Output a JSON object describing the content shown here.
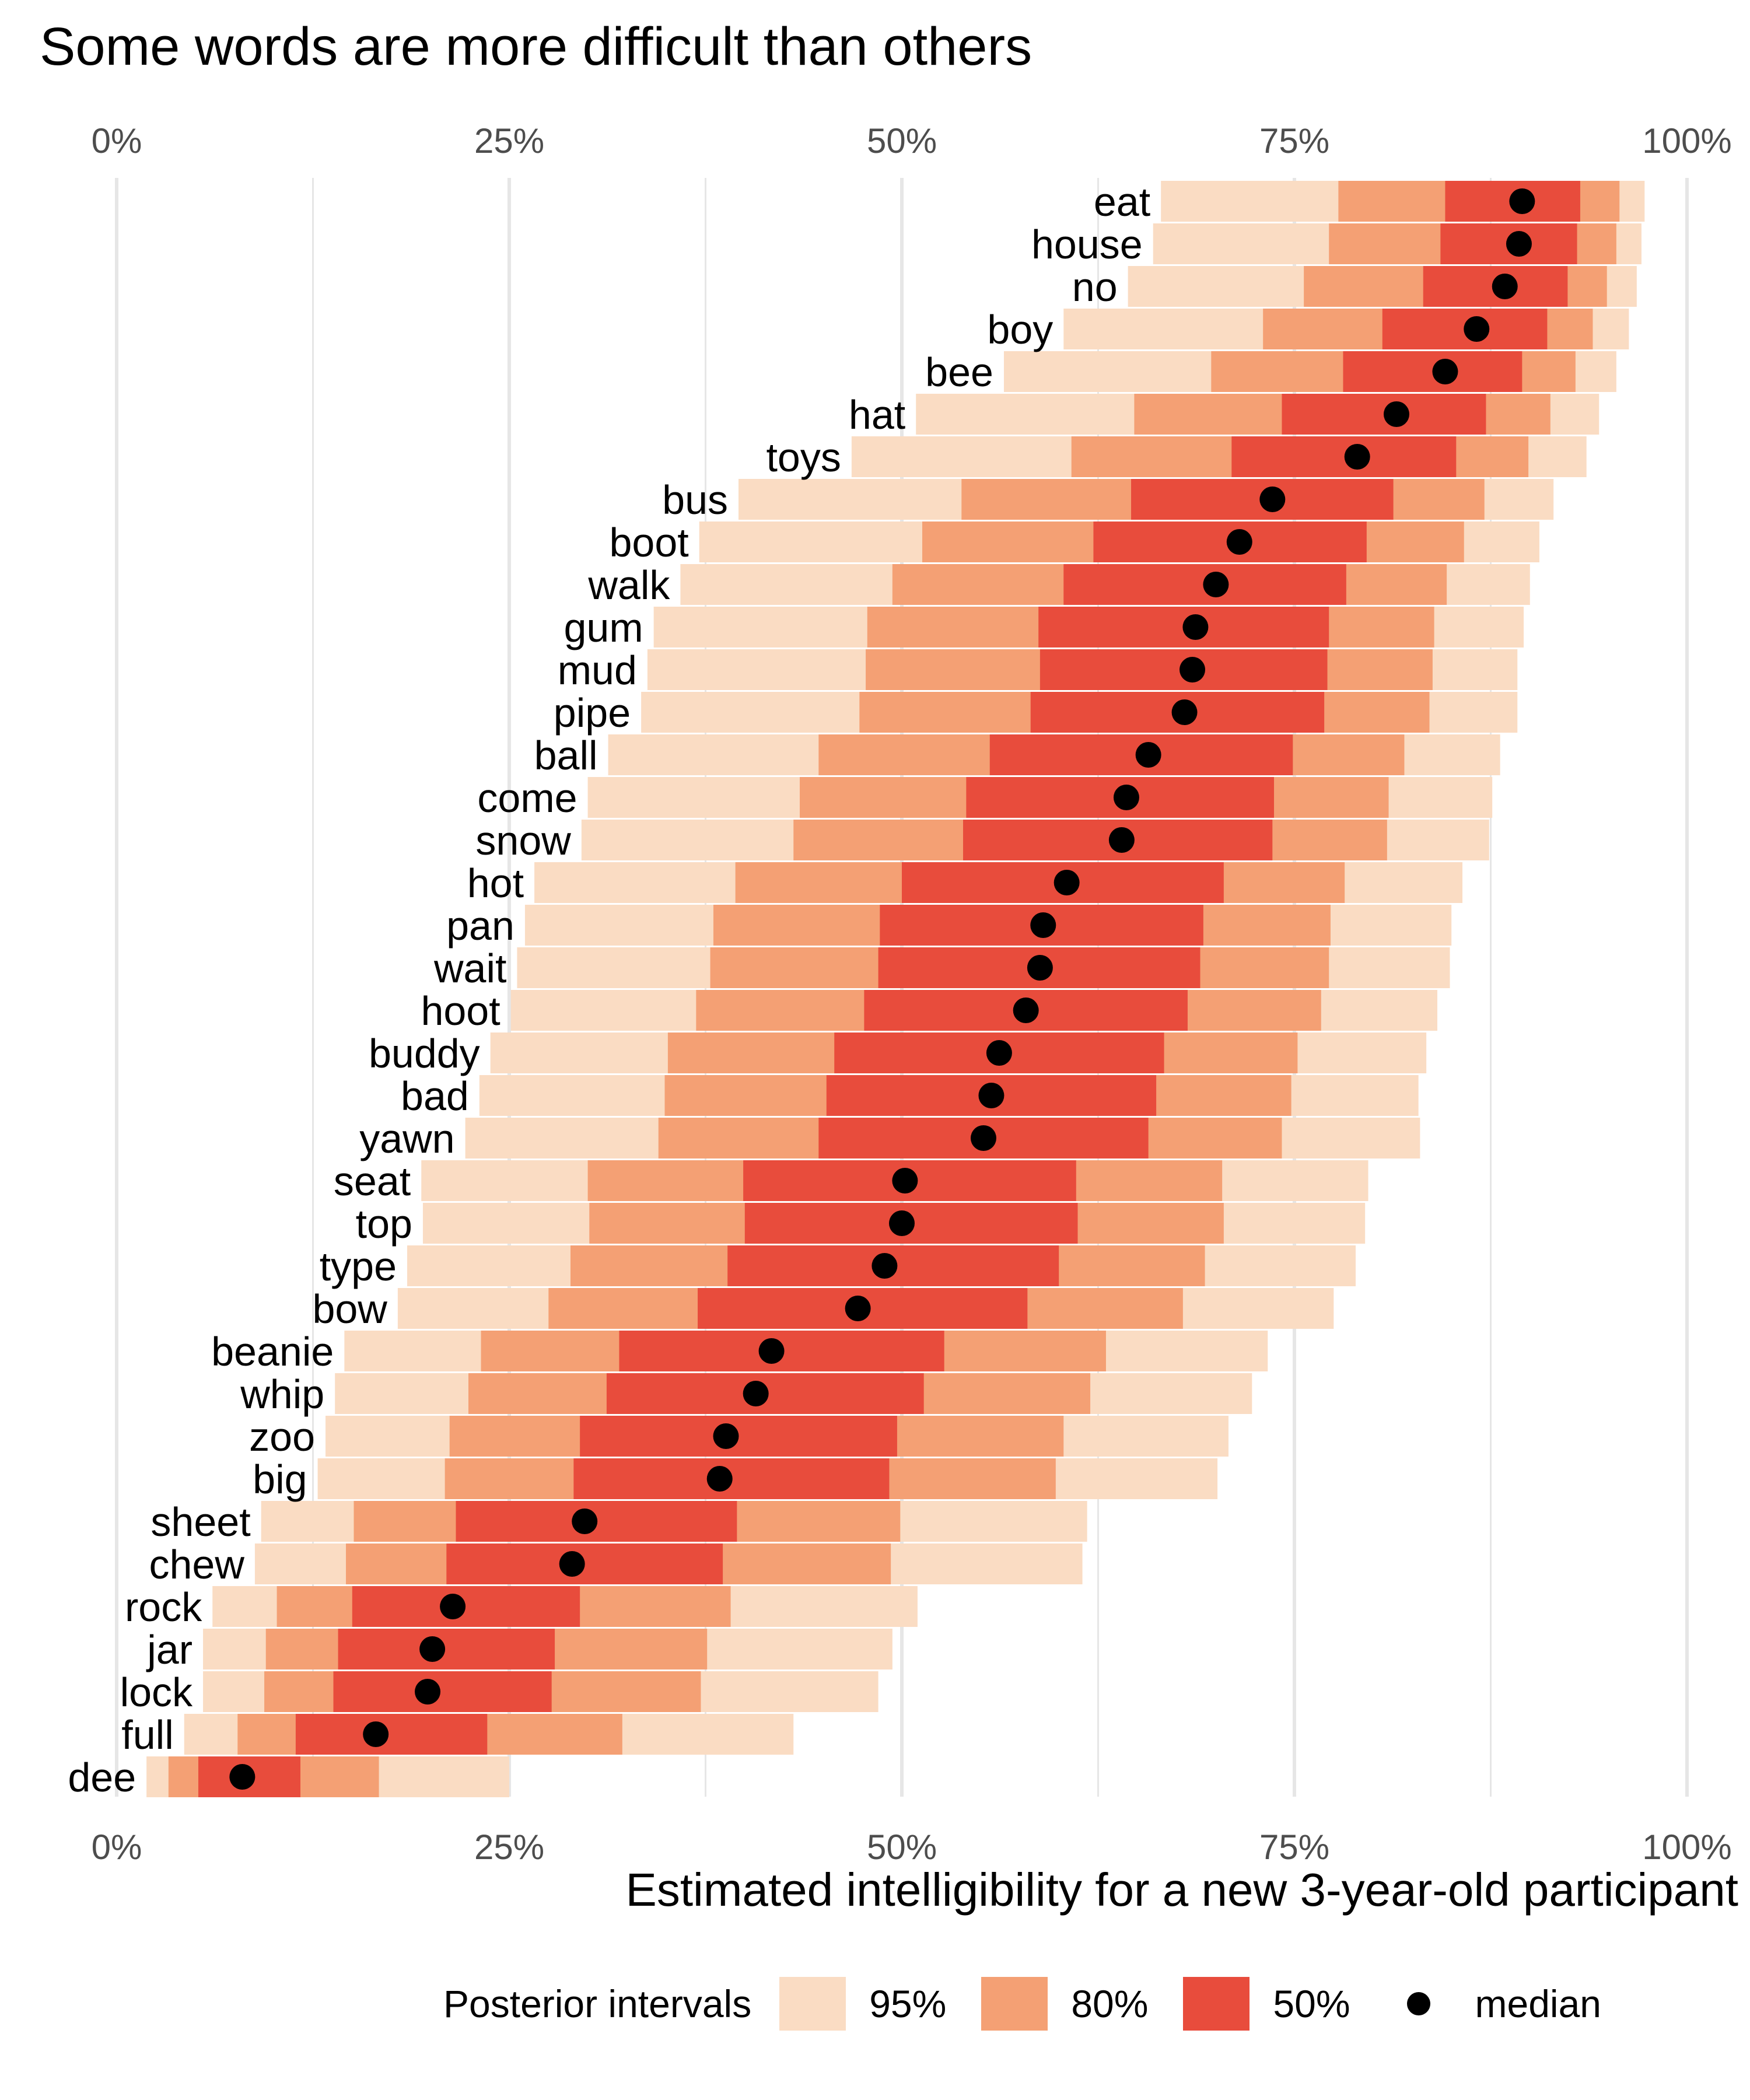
{
  "colors": {
    "ci95": "#fadcc3",
    "ci80": "#f4a074",
    "ci50": "#e84c3c",
    "median": "#000000",
    "grid": "#e6e6e6"
  },
  "chart_data": {
    "type": "interval",
    "title": "Some words are more difficult than others",
    "xlabel": "Estimated intelligibility for a new 3-year-old participant",
    "ylabel": "",
    "xlim": [
      0,
      1
    ],
    "x_ticks": [
      0,
      0.25,
      0.5,
      0.75,
      1
    ],
    "x_tick_labels": [
      "0%",
      "25%",
      "50%",
      "75%",
      "100%"
    ],
    "x_axis_position": "top and bottom",
    "grid": true,
    "legend": {
      "title": "Posterior intervals",
      "placement": "bottom",
      "items": [
        {
          "key": "ci95",
          "label": "95%"
        },
        {
          "key": "ci80",
          "label": "80%"
        },
        {
          "key": "ci50",
          "label": "50%"
        },
        {
          "key": "median",
          "label": "median"
        }
      ]
    },
    "words": [
      {
        "word": "eat",
        "l95": 0.665,
        "l80": 0.778,
        "l50": 0.846,
        "median": 0.895,
        "u50": 0.932,
        "u80": 0.957,
        "u95": 0.973
      },
      {
        "word": "house",
        "l95": 0.66,
        "l80": 0.772,
        "l50": 0.843,
        "median": 0.893,
        "u50": 0.93,
        "u80": 0.955,
        "u95": 0.971
      },
      {
        "word": "no",
        "l95": 0.644,
        "l80": 0.756,
        "l50": 0.832,
        "median": 0.884,
        "u50": 0.924,
        "u80": 0.949,
        "u95": 0.968
      },
      {
        "word": "boy",
        "l95": 0.603,
        "l80": 0.73,
        "l50": 0.806,
        "median": 0.866,
        "u50": 0.911,
        "u80": 0.94,
        "u95": 0.963
      },
      {
        "word": "bee",
        "l95": 0.565,
        "l80": 0.697,
        "l50": 0.781,
        "median": 0.846,
        "u50": 0.895,
        "u80": 0.929,
        "u95": 0.955
      },
      {
        "word": "hat",
        "l95": 0.509,
        "l80": 0.648,
        "l50": 0.742,
        "median": 0.815,
        "u50": 0.872,
        "u80": 0.913,
        "u95": 0.944
      },
      {
        "word": "toys",
        "l95": 0.468,
        "l80": 0.608,
        "l50": 0.71,
        "median": 0.79,
        "u50": 0.853,
        "u80": 0.899,
        "u95": 0.936
      },
      {
        "word": "bus",
        "l95": 0.396,
        "l80": 0.538,
        "l50": 0.646,
        "median": 0.736,
        "u50": 0.813,
        "u80": 0.871,
        "u95": 0.915
      },
      {
        "word": "boot",
        "l95": 0.371,
        "l80": 0.513,
        "l50": 0.622,
        "median": 0.715,
        "u50": 0.796,
        "u80": 0.858,
        "u95": 0.906
      },
      {
        "word": "walk",
        "l95": 0.359,
        "l80": 0.494,
        "l50": 0.603,
        "median": 0.7,
        "u50": 0.783,
        "u80": 0.847,
        "u95": 0.9
      },
      {
        "word": "gum",
        "l95": 0.342,
        "l80": 0.478,
        "l50": 0.587,
        "median": 0.687,
        "u50": 0.772,
        "u80": 0.839,
        "u95": 0.896
      },
      {
        "word": "mud",
        "l95": 0.338,
        "l80": 0.477,
        "l50": 0.588,
        "median": 0.685,
        "u50": 0.771,
        "u80": 0.838,
        "u95": 0.892
      },
      {
        "word": "pipe",
        "l95": 0.334,
        "l80": 0.473,
        "l50": 0.582,
        "median": 0.68,
        "u50": 0.769,
        "u80": 0.836,
        "u95": 0.892
      },
      {
        "word": "ball",
        "l95": 0.313,
        "l80": 0.447,
        "l50": 0.556,
        "median": 0.657,
        "u50": 0.749,
        "u80": 0.82,
        "u95": 0.881
      },
      {
        "word": "come",
        "l95": 0.3,
        "l80": 0.435,
        "l50": 0.541,
        "median": 0.643,
        "u50": 0.737,
        "u80": 0.81,
        "u95": 0.876
      },
      {
        "word": "snow",
        "l95": 0.296,
        "l80": 0.431,
        "l50": 0.539,
        "median": 0.64,
        "u50": 0.736,
        "u80": 0.809,
        "u95": 0.874
      },
      {
        "word": "hot",
        "l95": 0.266,
        "l80": 0.394,
        "l50": 0.5,
        "median": 0.605,
        "u50": 0.705,
        "u80": 0.782,
        "u95": 0.857
      },
      {
        "word": "pan",
        "l95": 0.26,
        "l80": 0.38,
        "l50": 0.486,
        "median": 0.59,
        "u50": 0.692,
        "u80": 0.773,
        "u95": 0.85
      },
      {
        "word": "wait",
        "l95": 0.255,
        "l80": 0.378,
        "l50": 0.485,
        "median": 0.588,
        "u50": 0.69,
        "u80": 0.772,
        "u95": 0.849
      },
      {
        "word": "hoot",
        "l95": 0.251,
        "l80": 0.369,
        "l50": 0.476,
        "median": 0.579,
        "u50": 0.682,
        "u80": 0.767,
        "u95": 0.841
      },
      {
        "word": "buddy",
        "l95": 0.238,
        "l80": 0.351,
        "l50": 0.457,
        "median": 0.562,
        "u50": 0.667,
        "u80": 0.752,
        "u95": 0.834
      },
      {
        "word": "bad",
        "l95": 0.231,
        "l80": 0.349,
        "l50": 0.452,
        "median": 0.557,
        "u50": 0.662,
        "u80": 0.748,
        "u95": 0.829
      },
      {
        "word": "yawn",
        "l95": 0.222,
        "l80": 0.345,
        "l50": 0.447,
        "median": 0.552,
        "u50": 0.657,
        "u80": 0.742,
        "u95": 0.83
      },
      {
        "word": "seat",
        "l95": 0.194,
        "l80": 0.3,
        "l50": 0.399,
        "median": 0.502,
        "u50": 0.611,
        "u80": 0.704,
        "u95": 0.797
      },
      {
        "word": "top",
        "l95": 0.195,
        "l80": 0.301,
        "l50": 0.4,
        "median": 0.5,
        "u50": 0.612,
        "u80": 0.705,
        "u95": 0.795
      },
      {
        "word": "type",
        "l95": 0.185,
        "l80": 0.289,
        "l50": 0.389,
        "median": 0.489,
        "u50": 0.6,
        "u80": 0.693,
        "u95": 0.789
      },
      {
        "word": "bow",
        "l95": 0.179,
        "l80": 0.275,
        "l50": 0.37,
        "median": 0.472,
        "u50": 0.58,
        "u80": 0.679,
        "u95": 0.775
      },
      {
        "word": "beanie",
        "l95": 0.145,
        "l80": 0.232,
        "l50": 0.32,
        "median": 0.417,
        "u50": 0.527,
        "u80": 0.63,
        "u95": 0.733
      },
      {
        "word": "whip",
        "l95": 0.139,
        "l80": 0.224,
        "l50": 0.312,
        "median": 0.407,
        "u50": 0.514,
        "u80": 0.62,
        "u95": 0.723
      },
      {
        "word": "zoo",
        "l95": 0.133,
        "l80": 0.212,
        "l50": 0.295,
        "median": 0.388,
        "u50": 0.497,
        "u80": 0.603,
        "u95": 0.708
      },
      {
        "word": "big",
        "l95": 0.128,
        "l80": 0.209,
        "l50": 0.291,
        "median": 0.384,
        "u50": 0.492,
        "u80": 0.598,
        "u95": 0.701
      },
      {
        "word": "sheet",
        "l95": 0.092,
        "l80": 0.151,
        "l50": 0.216,
        "median": 0.298,
        "u50": 0.395,
        "u80": 0.499,
        "u95": 0.618
      },
      {
        "word": "chew",
        "l95": 0.088,
        "l80": 0.146,
        "l50": 0.21,
        "median": 0.29,
        "u50": 0.386,
        "u80": 0.493,
        "u95": 0.615
      },
      {
        "word": "rock",
        "l95": 0.061,
        "l80": 0.102,
        "l50": 0.15,
        "median": 0.214,
        "u50": 0.295,
        "u80": 0.391,
        "u95": 0.51
      },
      {
        "word": "jar",
        "l95": 0.055,
        "l80": 0.095,
        "l50": 0.141,
        "median": 0.201,
        "u50": 0.279,
        "u80": 0.376,
        "u95": 0.494
      },
      {
        "word": "lock",
        "l95": 0.055,
        "l80": 0.094,
        "l50": 0.138,
        "median": 0.198,
        "u50": 0.277,
        "u80": 0.372,
        "u95": 0.485
      },
      {
        "word": "full",
        "l95": 0.043,
        "l80": 0.077,
        "l50": 0.114,
        "median": 0.165,
        "u50": 0.236,
        "u80": 0.322,
        "u95": 0.431
      },
      {
        "word": "dee",
        "l95": 0.019,
        "l80": 0.033,
        "l50": 0.052,
        "median": 0.08,
        "u50": 0.117,
        "u80": 0.167,
        "u95": 0.25
      }
    ]
  }
}
